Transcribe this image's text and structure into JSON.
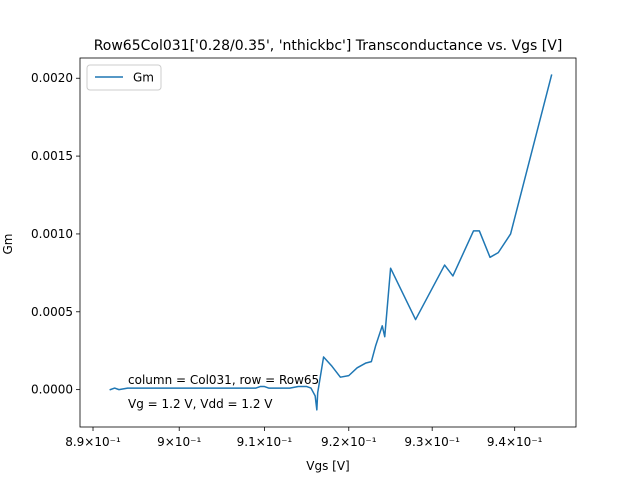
{
  "chart_data": {
    "type": "line",
    "title": "Row65Col031['0.28/0.35', 'nthickbc'] Transconductance vs. Vgs [V]",
    "xlabel": "Vgs [V]",
    "ylabel": "Gm",
    "xscale": "log",
    "xlim": [
      0.8885,
      0.9475
    ],
    "ylim": [
      -0.00024,
      0.00213
    ],
    "x_ticks": [
      0.89,
      0.9,
      0.91,
      0.92,
      0.93,
      0.94
    ],
    "x_tick_labels": [
      "8.9×10⁻¹",
      "9×10⁻¹",
      "9.1×10⁻¹",
      "9.2×10⁻¹",
      "9.3×10⁻¹",
      "9.4×10⁻¹"
    ],
    "y_ticks": [
      0.0,
      0.0005,
      0.001,
      0.0015,
      0.002
    ],
    "y_tick_labels": [
      "0.0000",
      "0.0005",
      "0.0010",
      "0.0015",
      "0.0020"
    ],
    "legend": {
      "position": "top-left",
      "entries": [
        "Gm"
      ]
    },
    "color": "#1f77b4",
    "annotations": [
      "column = Col031, row = Row65",
      "Vg = 1.2 V, Vdd = 1.2 V"
    ],
    "series": [
      {
        "name": "Gm",
        "x": [
          0.892,
          0.8925,
          0.893,
          0.894,
          0.896,
          0.898,
          0.9,
          0.903,
          0.906,
          0.909,
          0.9095,
          0.91,
          0.9105,
          0.911,
          0.912,
          0.913,
          0.914,
          0.915,
          0.9155,
          0.916,
          0.9162,
          0.9163,
          0.917,
          0.918,
          0.919,
          0.92,
          0.921,
          0.922,
          0.9227,
          0.9232,
          0.924,
          0.9243,
          0.925,
          0.928,
          0.9315,
          0.9325,
          0.935,
          0.9357,
          0.937,
          0.938,
          0.9395,
          0.9445
        ],
        "y": [
          0.0,
          1e-05,
          0.0,
          1e-05,
          1e-05,
          1e-05,
          1e-05,
          1e-05,
          1e-05,
          1e-05,
          2e-05,
          2e-05,
          1e-05,
          1e-05,
          1e-05,
          1e-05,
          2e-05,
          2e-05,
          1e-05,
          -4e-05,
          -0.00013,
          -2e-05,
          0.00021,
          0.00015,
          8e-05,
          9e-05,
          0.00014,
          0.00017,
          0.00018,
          0.00028,
          0.00041,
          0.00034,
          0.00078,
          0.00045,
          0.0008,
          0.00073,
          0.00102,
          0.00102,
          0.00085,
          0.00088,
          0.001,
          0.00202
        ]
      }
    ]
  }
}
